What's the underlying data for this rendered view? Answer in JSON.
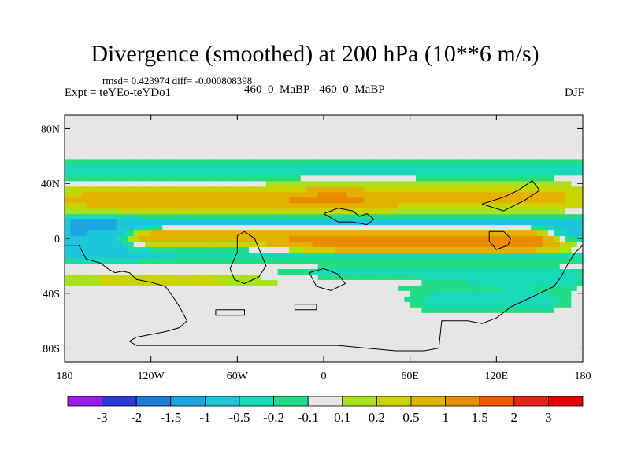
{
  "chart_data": {
    "type": "heatmap",
    "title": "Divergence (smoothed) at 200 hPa (10**6 m/s)",
    "stats_line": "rmsd= 0.423974 diff= -0.000808398",
    "experiment": "Expt = teYEo-teYDo1",
    "period": "460_0_MaBP - 460_0_MaBP",
    "season": "DJF",
    "x_ticks": [
      "180",
      "120W",
      "60W",
      "0",
      "60E",
      "120E",
      "180"
    ],
    "y_ticks": [
      "80N",
      "40N",
      "0",
      "40S",
      "80S"
    ],
    "x_range": [
      -180,
      180
    ],
    "y_range": [
      -90,
      90
    ],
    "colorbar_labels": [
      "-3",
      "-2",
      "-1.5",
      "-1",
      "-0.5",
      "-0.2",
      "-0.1",
      "0.1",
      "0.2",
      "0.5",
      "1",
      "1.5",
      "2",
      "3"
    ],
    "colorbar_colors": [
      "#9a1dea",
      "#2f3ad8",
      "#1a7cd8",
      "#1aa6e0",
      "#1ec6dc",
      "#18d9b8",
      "#22dd88",
      "#e6e6e6",
      "#a7e21d",
      "#c8d400",
      "#e3b200",
      "#eb8c00",
      "#ee5a00",
      "#e2241c",
      "#e20000"
    ],
    "features": [
      {
        "lon0": -150,
        "lon1": -10,
        "lat": 28,
        "wlon": 55,
        "wlat": 8,
        "v": 0.7
      },
      {
        "lon0": 20,
        "lon1": 150,
        "lat": 30,
        "wlon": 55,
        "wlat": 8,
        "v": 0.6
      },
      {
        "lon0": -120,
        "lon1": 150,
        "lat": 1,
        "wlon": 60,
        "wlat": 5,
        "v": 0.9
      },
      {
        "lon0": 20,
        "lon1": 140,
        "lat": -5,
        "wlon": 45,
        "wlat": 5,
        "v": 1.0
      },
      {
        "lon0": -170,
        "lon1": 150,
        "lat": 50,
        "wlon": 60,
        "wlat": 5,
        "v": -0.55
      },
      {
        "lon0": -160,
        "lon1": 140,
        "lat": 12,
        "wlon": 60,
        "wlat": 4,
        "v": -0.55
      },
      {
        "lon0": -150,
        "lon1": 130,
        "lat": -12,
        "wlon": 60,
        "wlat": 4,
        "v": -0.5
      },
      {
        "lon0": 20,
        "lon1": 140,
        "lat": -28,
        "wlon": 60,
        "wlat": 7,
        "v": -0.4
      },
      {
        "lon0": 90,
        "lon1": 140,
        "lat": -45,
        "wlon": 30,
        "wlat": 8,
        "v": -0.35
      },
      {
        "lon0": -130,
        "lon1": 40,
        "lat": -30,
        "wlon": 70,
        "wlat": 4,
        "v": 0.3
      },
      {
        "lon0": -170,
        "lon1": -150,
        "lat": 2,
        "wlon": 20,
        "wlat": 10,
        "v": -1.4
      },
      {
        "lon0": 170,
        "lon1": 180,
        "lat": 2,
        "wlon": 15,
        "wlat": 8,
        "v": -1.2
      }
    ],
    "coastline": [
      [
        [
          -180,
          -5
        ],
        [
          -170,
          -5
        ],
        [
          -165,
          -15
        ],
        [
          -155,
          -18
        ],
        [
          -150,
          -22
        ],
        [
          -145,
          -25
        ],
        [
          -140,
          -24
        ],
        [
          -135,
          -25
        ],
        [
          -130,
          -30
        ],
        [
          -120,
          -32
        ],
        [
          -110,
          -35
        ],
        [
          -105,
          -42
        ],
        [
          -100,
          -50
        ],
        [
          -95,
          -60
        ],
        [
          -100,
          -65
        ],
        [
          -110,
          -68
        ],
        [
          -120,
          -70
        ],
        [
          -130,
          -72
        ],
        [
          -135,
          -75
        ],
        [
          -130,
          -78
        ],
        [
          -110,
          -78
        ],
        [
          -90,
          -78
        ],
        [
          -70,
          -78
        ],
        [
          -50,
          -78
        ],
        [
          -30,
          -78
        ],
        [
          -10,
          -78
        ],
        [
          10,
          -78
        ],
        [
          30,
          -80
        ],
        [
          50,
          -82
        ],
        [
          70,
          -82
        ],
        [
          80,
          -80
        ],
        [
          82,
          -60
        ],
        [
          100,
          -60
        ],
        [
          110,
          -62
        ],
        [
          120,
          -58
        ],
        [
          130,
          -50
        ],
        [
          140,
          -45
        ],
        [
          150,
          -40
        ],
        [
          160,
          -35
        ],
        [
          165,
          -28
        ],
        [
          170,
          -18
        ],
        [
          175,
          -10
        ],
        [
          180,
          -5
        ]
      ],
      [
        [
          -60,
          2
        ],
        [
          -55,
          5
        ],
        [
          -48,
          0
        ],
        [
          -44,
          -10
        ],
        [
          -40,
          -20
        ],
        [
          -45,
          -28
        ],
        [
          -55,
          -33
        ],
        [
          -62,
          -30
        ],
        [
          -65,
          -22
        ],
        [
          -60,
          -10
        ],
        [
          -60,
          2
        ]
      ],
      [
        [
          -10,
          -25
        ],
        [
          0,
          -22
        ],
        [
          10,
          -26
        ],
        [
          15,
          -33
        ],
        [
          5,
          -38
        ],
        [
          -5,
          -35
        ],
        [
          -10,
          -25
        ]
      ],
      [
        [
          0,
          18
        ],
        [
          10,
          22
        ],
        [
          20,
          20
        ],
        [
          25,
          16
        ],
        [
          30,
          18
        ],
        [
          35,
          14
        ],
        [
          30,
          10
        ],
        [
          20,
          12
        ],
        [
          10,
          12
        ],
        [
          0,
          18
        ]
      ],
      [
        [
          115,
          5
        ],
        [
          125,
          5
        ],
        [
          130,
          0
        ],
        [
          128,
          -5
        ],
        [
          120,
          -8
        ],
        [
          115,
          -2
        ],
        [
          115,
          5
        ]
      ],
      [
        [
          110,
          25
        ],
        [
          125,
          30
        ],
        [
          135,
          35
        ],
        [
          145,
          42
        ],
        [
          150,
          35
        ],
        [
          140,
          28
        ],
        [
          125,
          20
        ],
        [
          110,
          25
        ]
      ],
      [
        [
          -20,
          -48
        ],
        [
          -5,
          -48
        ],
        [
          -5,
          -52
        ],
        [
          -20,
          -52
        ],
        [
          -20,
          -48
        ]
      ],
      [
        [
          -75,
          -52
        ],
        [
          -55,
          -52
        ],
        [
          -55,
          -56
        ],
        [
          -75,
          -56
        ],
        [
          -75,
          -52
        ]
      ]
    ]
  }
}
